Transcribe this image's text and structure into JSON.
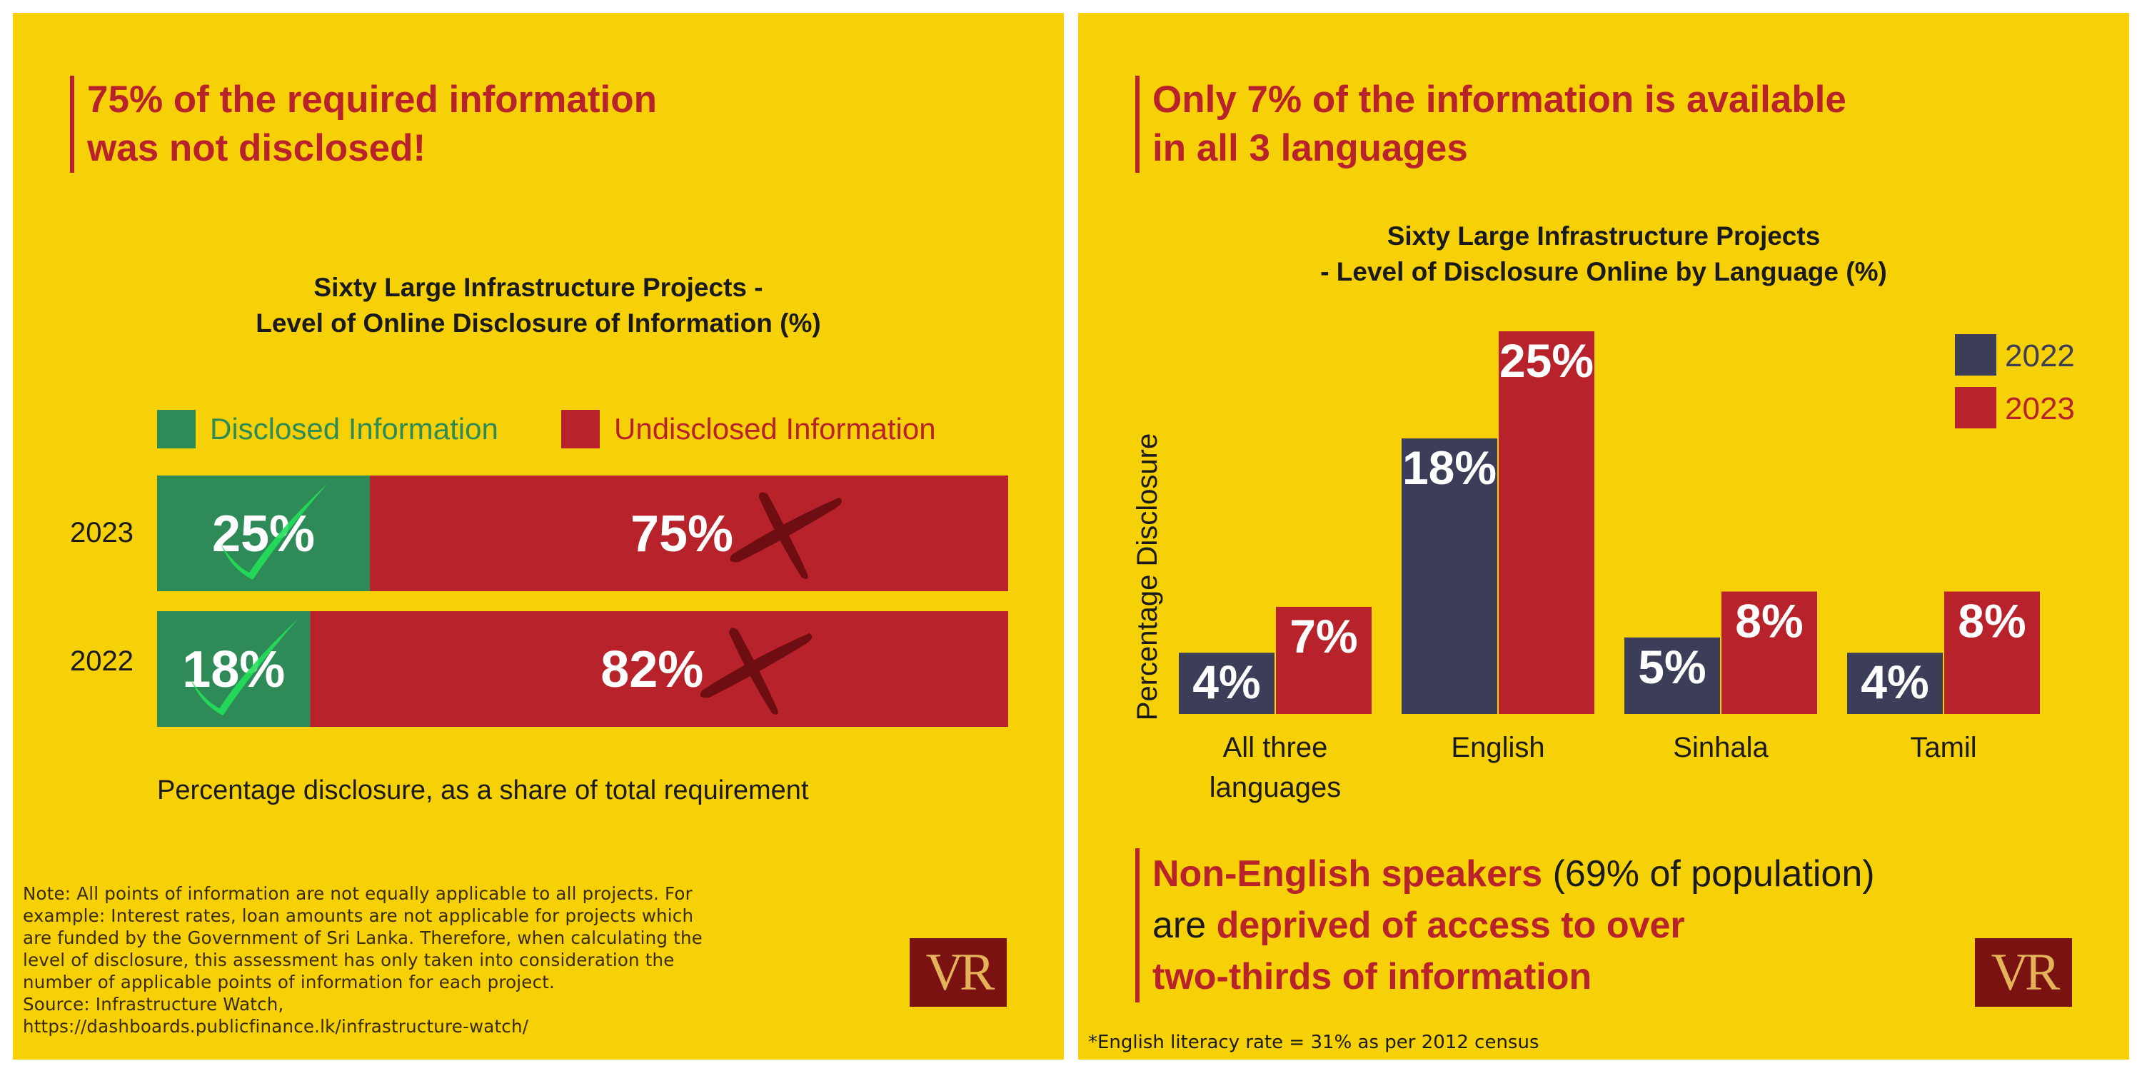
{
  "left": {
    "headline": [
      "75% of the required information",
      "was not disclosed!"
    ],
    "caption": "Percentage disclosure, as a share of total requirement",
    "note_lines": [
      "Note: All points of information are not equally applicable to all projects. For",
      "example: Interest rates, loan amounts are not applicable for projects which",
      "are funded by the Government of Sri Lanka. Therefore, when calculating the",
      "level of disclosure, this assessment has only taken into consideration the",
      "number of applicable points of information for each project.",
      "Source: Infrastructure Watch,",
      "https://dashboards.publicfinance.lk/infrastructure-watch/"
    ],
    "logo": "VR"
  },
  "right": {
    "headline": [
      "Only 7% of the information is available",
      "in all 3 languages"
    ],
    "statement": {
      "line1_bold": "Non-English speakers",
      "line1_rest": " (69% of population)",
      "line2_plain": "are ",
      "line2_bold": "deprived of access to over",
      "line3_bold": "two-thirds of information"
    },
    "footnote": "*English literacy rate = 31% as per 2012 census",
    "logo": "VR"
  },
  "colors": {
    "background": "#f7d107",
    "disclosed": "#2e8b57",
    "undisclosed": "#b8222a",
    "year2022": "#3b3d59",
    "year2023": "#b8222a",
    "accent": "#b8222a",
    "checkmark": "#22e05a",
    "cross": "#6e0e12"
  },
  "chart_data": [
    {
      "type": "bar",
      "orientation": "horizontal-stacked",
      "title": [
        "Sixty Large Infrastructure Projects -",
        "Level of Online Disclosure of Information (%)"
      ],
      "categories": [
        "2023",
        "2022"
      ],
      "series": [
        {
          "name": "Disclosed Information",
          "values": [
            25,
            18
          ],
          "labels": [
            "25%",
            "18%"
          ],
          "icon": "checkmark-icon"
        },
        {
          "name": "Undisclosed Information",
          "values": [
            75,
            82
          ],
          "labels": [
            "75%",
            "82%"
          ],
          "icon": "cross-icon"
        }
      ],
      "xlim": [
        0,
        100
      ],
      "legend": "top",
      "grid": false
    },
    {
      "type": "bar",
      "orientation": "vertical-grouped",
      "title": [
        "Sixty Large Infrastructure Projects",
        "- Level of Disclosure Online by Language (%)"
      ],
      "categories": [
        [
          "All three",
          "languages"
        ],
        [
          "English"
        ],
        [
          "Sinhala"
        ],
        [
          "Tamil"
        ]
      ],
      "series": [
        {
          "name": "2022",
          "values": [
            4,
            18,
            5,
            4
          ],
          "labels": [
            "4%",
            "18%",
            "5%",
            "4%"
          ]
        },
        {
          "name": "2023",
          "values": [
            7,
            25,
            8,
            8
          ],
          "labels": [
            "7%",
            "25%",
            "8%",
            "8%"
          ]
        }
      ],
      "ylabel": "Percentage Disclosure",
      "ylim": [
        0,
        25
      ],
      "legend": "top-right",
      "grid": false
    }
  ]
}
